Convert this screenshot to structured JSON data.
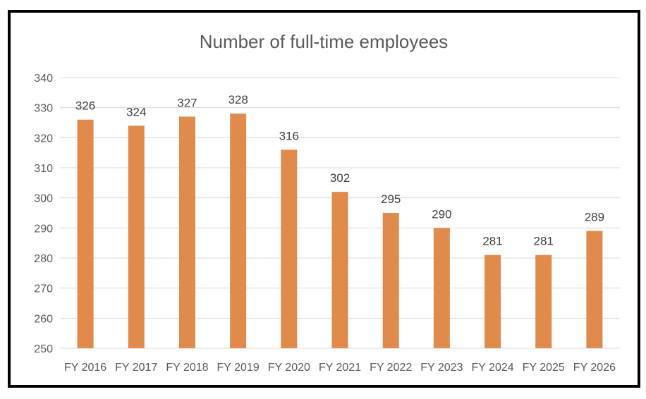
{
  "chart_data": {
    "type": "bar",
    "title": "Number of full-time employees",
    "xlabel": "",
    "ylabel": "",
    "categories": [
      "FY 2016",
      "FY 2017",
      "FY 2018",
      "FY 2019",
      "FY 2020",
      "FY 2021",
      "FY 2022",
      "FY 2023",
      "FY 2024",
      "FY 2025",
      "FY 2026"
    ],
    "values": [
      326,
      324,
      327,
      328,
      316,
      302,
      295,
      290,
      281,
      281,
      289
    ],
    "ylim": [
      250,
      340
    ],
    "yticks": [
      250,
      260,
      270,
      280,
      290,
      300,
      310,
      320,
      330,
      340
    ],
    "grid": true,
    "legend": "none",
    "data_labels": true,
    "bar_color": "#e08a4c",
    "gridline_color": "#d9d9d9",
    "text_color": "#595959",
    "frame_color": "#000000"
  }
}
